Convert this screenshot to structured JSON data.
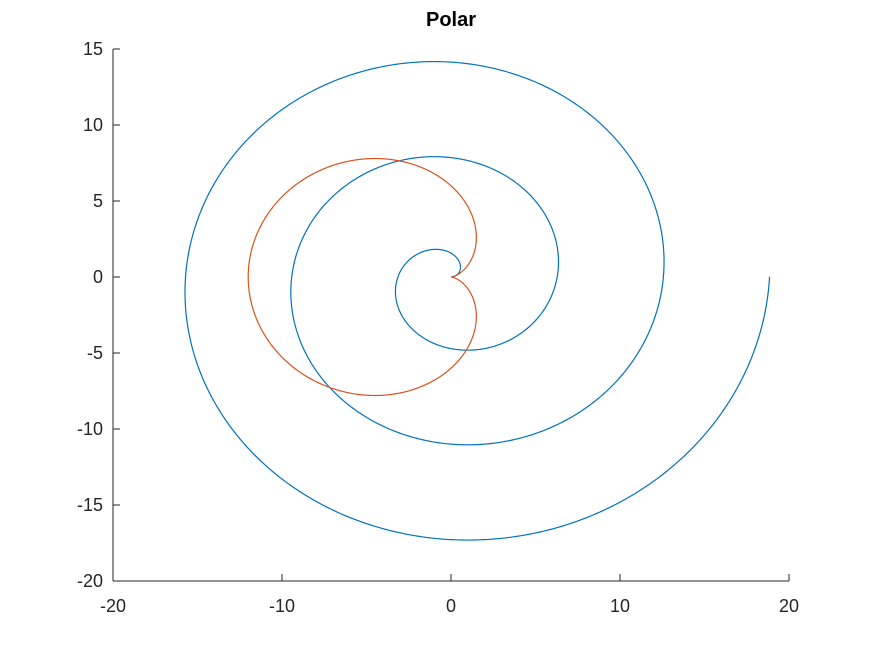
{
  "chart_data": {
    "type": "line",
    "title": "Polar",
    "xlabel": "",
    "ylabel": "",
    "xlim": [
      -20,
      20
    ],
    "ylim": [
      -20,
      15
    ],
    "x_ticks": [
      -20,
      -10,
      0,
      10,
      20
    ],
    "y_ticks": [
      15,
      10,
      5,
      0,
      -5,
      -10,
      -15,
      -20
    ],
    "grid": false,
    "box": false,
    "series": [
      {
        "kind": "archimedean-spiral",
        "equation": "r = theta",
        "theta_range": [
          0,
          18.85
        ],
        "color": "#0072BD"
      },
      {
        "kind": "cardioid",
        "equation": "r = 6*(1 - cos(theta))",
        "theta_range": [
          0,
          6.2832
        ],
        "color": "#D95319"
      }
    ]
  }
}
